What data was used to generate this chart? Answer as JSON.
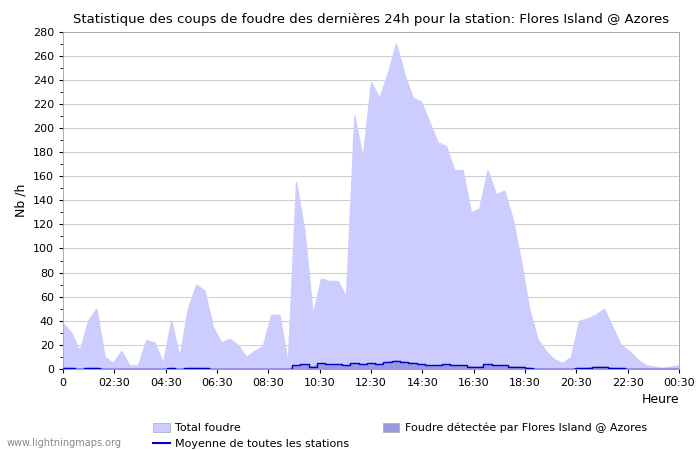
{
  "title": "Statistique des coups de foudre des dernières 24h pour la station: Flores Island @ Azores",
  "xlabel": "Heure",
  "ylabel": "Nb /h",
  "watermark": "www.lightningmaps.org",
  "ylim": [
    0,
    280
  ],
  "yticks": [
    0,
    20,
    40,
    60,
    80,
    100,
    120,
    140,
    160,
    180,
    200,
    220,
    240,
    260,
    280
  ],
  "xtick_labels_shown": [
    "0",
    "02:30",
    "04:30",
    "06:30",
    "08:30",
    "10:30",
    "12:30",
    "14:30",
    "16:30",
    "18:30",
    "20:30",
    "22:30",
    "00:30"
  ],
  "bg_color": "#ffffff",
  "grid_color": "#cccccc",
  "fill_total_color": "#ccccff",
  "fill_local_color": "#9999dd",
  "line_mean_color": "#0000cc",
  "total_foudre": [
    38,
    30,
    15,
    40,
    50,
    10,
    5,
    15,
    3,
    3,
    24,
    22,
    5,
    40,
    10,
    50,
    70,
    65,
    35,
    22,
    25,
    20,
    10,
    15,
    19,
    45,
    45,
    5,
    155,
    115,
    45,
    75,
    73,
    73,
    60,
    210,
    175,
    238,
    225,
    245,
    270,
    245,
    225,
    222,
    205,
    188,
    185,
    165,
    165,
    130,
    133,
    165,
    145,
    148,
    125,
    90,
    50,
    25,
    15,
    8,
    5,
    10,
    40,
    42,
    45,
    50,
    35,
    20,
    15,
    8,
    3,
    2,
    1,
    2,
    3
  ],
  "local_foudre": [
    1,
    1,
    0,
    1,
    1,
    0,
    0,
    0,
    0,
    0,
    0,
    0,
    0,
    1,
    0,
    1,
    1,
    1,
    0,
    0,
    0,
    0,
    0,
    0,
    0,
    0,
    0,
    0,
    3,
    4,
    2,
    5,
    4,
    4,
    3,
    5,
    4,
    5,
    4,
    6,
    7,
    6,
    5,
    4,
    3,
    3,
    4,
    3,
    3,
    2,
    2,
    4,
    3,
    3,
    2,
    2,
    1,
    0,
    0,
    0,
    0,
    0,
    1,
    1,
    2,
    2,
    1,
    1,
    0,
    0,
    0,
    0,
    0,
    0,
    0
  ],
  "mean_line": [
    1,
    1,
    0,
    1,
    1,
    0,
    0,
    0,
    0,
    0,
    0,
    0,
    0,
    1,
    0,
    1,
    1,
    1,
    0,
    0,
    0,
    0,
    0,
    0,
    0,
    0,
    0,
    0,
    3,
    4,
    2,
    5,
    4,
    4,
    3,
    5,
    4,
    5,
    4,
    6,
    7,
    6,
    5,
    4,
    3,
    3,
    4,
    3,
    3,
    2,
    2,
    4,
    3,
    3,
    2,
    2,
    1,
    0,
    0,
    0,
    0,
    0,
    1,
    1,
    2,
    2,
    1,
    1,
    0,
    0,
    0,
    0,
    0,
    0,
    0
  ],
  "figsize": [
    7.0,
    4.5
  ],
  "dpi": 100
}
